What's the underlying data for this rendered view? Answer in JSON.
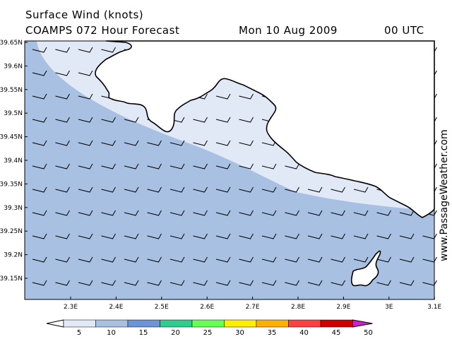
{
  "header": {
    "line1": "Surface Wind (knots)",
    "line2_left": "COAMPS 072 Hour Forecast",
    "line2_date": "Mon 10 Aug 2009",
    "line2_time": "00 UTC"
  },
  "axes": {
    "lat_labels": [
      "39.65N",
      "39.6N",
      "39.55N",
      "39.5N",
      "39.45N",
      "39.4N",
      "39.35N",
      "39.3N",
      "39.25N",
      "39.2N",
      "39.15N"
    ],
    "lon_labels": [
      "2.3E",
      "2.4E",
      "2.5E",
      "2.6E",
      "2.7E",
      "2.8E",
      "2.9E",
      "3E",
      "3.1E"
    ]
  },
  "legend": {
    "values": [
      "5",
      "10",
      "15",
      "20",
      "25",
      "30",
      "35",
      "40",
      "45",
      "50"
    ],
    "colors": [
      "#ffffff",
      "#e1e9f7",
      "#a8c0e1",
      "#6b95d6",
      "#2ecc8e",
      "#66ff55",
      "#ffee00",
      "#ffb000",
      "#ff4040",
      "#d00000",
      "#cc22cc"
    ]
  },
  "watermark": "www.PassageWeather.com",
  "colors": {
    "zone_5_10": "#e1e9f7",
    "zone_10_15": "#a8c0e1",
    "land": "#ffffff"
  }
}
